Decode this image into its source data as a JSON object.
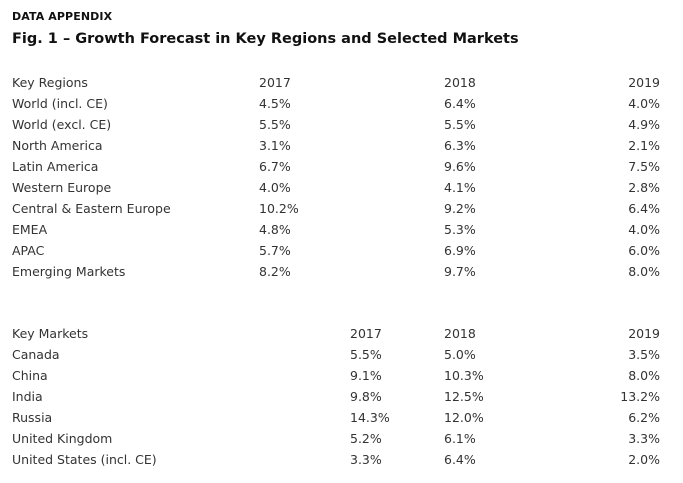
{
  "header": {
    "eyebrow": "DATA APPENDIX",
    "title": "Fig. 1 – Growth Forecast in Key Regions and Selected Markets"
  },
  "regions": {
    "columns": [
      "Key Regions",
      "2017",
      "2018",
      "2019"
    ],
    "rows": [
      [
        "World (incl. CE)",
        "4.5%",
        "6.4%",
        "4.0%"
      ],
      [
        "World (excl. CE)",
        "5.5%",
        "5.5%",
        "4.9%"
      ],
      [
        "North America",
        "3.1%",
        "6.3%",
        "2.1%"
      ],
      [
        "Latin America",
        "6.7%",
        "9.6%",
        "7.5%"
      ],
      [
        "Western Europe",
        "4.0%",
        "4.1%",
        "2.8%"
      ],
      [
        "Central & Eastern Europe",
        "10.2%",
        "9.2%",
        "6.4%"
      ],
      [
        "EMEA",
        "4.8%",
        "5.3%",
        "4.0%"
      ],
      [
        "APAC",
        "5.7%",
        "6.9%",
        "6.0%"
      ],
      [
        "Emerging Markets",
        "8.2%",
        "9.7%",
        "8.0%"
      ]
    ]
  },
  "markets": {
    "columns": [
      "Key Markets",
      "2017",
      "2018",
      "2019"
    ],
    "rows": [
      [
        "Canada",
        "5.5%",
        "5.0%",
        "3.5%"
      ],
      [
        "China",
        "9.1%",
        "10.3%",
        "8.0%"
      ],
      [
        "India",
        "9.8%",
        "12.5%",
        "13.2%"
      ],
      [
        "Russia",
        "14.3%",
        "12.0%",
        "6.2%"
      ],
      [
        "United Kingdom",
        "5.2%",
        "6.1%",
        "3.3%"
      ],
      [
        "United States (incl. CE)",
        "3.3%",
        "6.4%",
        "2.0%"
      ]
    ]
  }
}
